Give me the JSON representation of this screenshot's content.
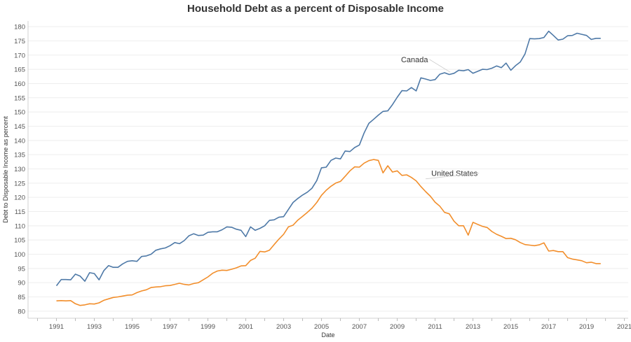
{
  "chart_data": {
    "type": "line",
    "title": "Household Debt as a percent of Disposable Income",
    "xlabel": "Date",
    "ylabel": "Debt to Disposable Income as percent",
    "xlim": [
      1989.5,
      2021.2
    ],
    "ylim": [
      77.5,
      182
    ],
    "x_ticks": [
      1991,
      1993,
      1995,
      1997,
      1999,
      2001,
      2003,
      2005,
      2007,
      2009,
      2011,
      2013,
      2015,
      2017,
      2019,
      2021
    ],
    "y_ticks": [
      80,
      85,
      90,
      95,
      100,
      105,
      110,
      115,
      120,
      125,
      130,
      135,
      140,
      145,
      150,
      155,
      160,
      165,
      170,
      175,
      180
    ],
    "grid": "horizontal",
    "colors": {
      "Canada": "#4e79a7",
      "United States": "#f28e2b"
    },
    "annotations": [
      {
        "text": "Canada",
        "series": "Canada",
        "x": 2009.2,
        "y": 167.5,
        "pointer_to": [
          2011.8,
          164
        ]
      },
      {
        "text": "United States",
        "series": "United States",
        "x": 2010.8,
        "y": 127.5,
        "pointer_to": [
          2010.5,
          126.5
        ]
      }
    ],
    "series": [
      {
        "name": "Canada",
        "points": [
          [
            1991.0,
            88.9
          ],
          [
            1991.25,
            91.1
          ],
          [
            1991.5,
            91.1
          ],
          [
            1991.75,
            91.0
          ],
          [
            1992.0,
            93.0
          ],
          [
            1992.25,
            92.3
          ],
          [
            1992.5,
            90.5
          ],
          [
            1992.75,
            93.5
          ],
          [
            1993.0,
            93.2
          ],
          [
            1993.25,
            91.0
          ],
          [
            1993.5,
            94.2
          ],
          [
            1993.75,
            96.0
          ],
          [
            1994.0,
            95.4
          ],
          [
            1994.25,
            95.4
          ],
          [
            1994.5,
            96.6
          ],
          [
            1994.75,
            97.5
          ],
          [
            1995.0,
            97.7
          ],
          [
            1995.25,
            97.5
          ],
          [
            1995.5,
            99.2
          ],
          [
            1995.75,
            99.4
          ],
          [
            1996.0,
            100.0
          ],
          [
            1996.25,
            101.4
          ],
          [
            1996.5,
            101.9
          ],
          [
            1996.75,
            102.2
          ],
          [
            1997.0,
            103.0
          ],
          [
            1997.25,
            104.1
          ],
          [
            1997.5,
            103.7
          ],
          [
            1997.75,
            104.8
          ],
          [
            1998.0,
            106.5
          ],
          [
            1998.25,
            107.2
          ],
          [
            1998.5,
            106.6
          ],
          [
            1998.75,
            106.7
          ],
          [
            1999.0,
            107.7
          ],
          [
            1999.25,
            107.9
          ],
          [
            1999.5,
            107.9
          ],
          [
            1999.75,
            108.6
          ],
          [
            2000.0,
            109.6
          ],
          [
            2000.25,
            109.5
          ],
          [
            2000.5,
            108.8
          ],
          [
            2000.75,
            108.4
          ],
          [
            2001.0,
            106.2
          ],
          [
            2001.25,
            109.6
          ],
          [
            2001.5,
            108.4
          ],
          [
            2001.75,
            109.1
          ],
          [
            2002.0,
            110.0
          ],
          [
            2002.25,
            111.9
          ],
          [
            2002.5,
            112.1
          ],
          [
            2002.75,
            113.0
          ],
          [
            2003.0,
            113.2
          ],
          [
            2003.25,
            115.7
          ],
          [
            2003.5,
            118.2
          ],
          [
            2003.75,
            119.6
          ],
          [
            2004.0,
            120.8
          ],
          [
            2004.25,
            121.8
          ],
          [
            2004.5,
            123.2
          ],
          [
            2004.75,
            125.9
          ],
          [
            2005.0,
            130.4
          ],
          [
            2005.25,
            130.6
          ],
          [
            2005.5,
            133.0
          ],
          [
            2005.75,
            133.8
          ],
          [
            2006.0,
            133.5
          ],
          [
            2006.25,
            136.3
          ],
          [
            2006.5,
            136.1
          ],
          [
            2006.75,
            137.5
          ],
          [
            2007.0,
            138.4
          ],
          [
            2007.25,
            142.6
          ],
          [
            2007.5,
            146.0
          ],
          [
            2007.75,
            147.4
          ],
          [
            2008.0,
            148.9
          ],
          [
            2008.25,
            150.2
          ],
          [
            2008.5,
            150.4
          ],
          [
            2008.75,
            152.6
          ],
          [
            2009.0,
            155.2
          ],
          [
            2009.25,
            157.5
          ],
          [
            2009.5,
            157.4
          ],
          [
            2009.75,
            158.6
          ],
          [
            2010.0,
            157.4
          ],
          [
            2010.25,
            162.0
          ],
          [
            2010.5,
            161.6
          ],
          [
            2010.75,
            161.1
          ],
          [
            2011.0,
            161.4
          ],
          [
            2011.25,
            163.3
          ],
          [
            2011.5,
            163.8
          ],
          [
            2011.75,
            163.2
          ],
          [
            2012.0,
            163.6
          ],
          [
            2012.25,
            164.7
          ],
          [
            2012.5,
            164.5
          ],
          [
            2012.75,
            164.9
          ],
          [
            2013.0,
            163.6
          ],
          [
            2013.25,
            164.3
          ],
          [
            2013.5,
            165.0
          ],
          [
            2013.75,
            164.9
          ],
          [
            2014.0,
            165.4
          ],
          [
            2014.25,
            166.2
          ],
          [
            2014.5,
            165.6
          ],
          [
            2014.75,
            167.2
          ],
          [
            2015.0,
            164.7
          ],
          [
            2015.25,
            166.3
          ],
          [
            2015.5,
            167.6
          ],
          [
            2015.75,
            170.4
          ],
          [
            2016.0,
            175.8
          ],
          [
            2016.25,
            175.7
          ],
          [
            2016.5,
            175.8
          ],
          [
            2016.75,
            176.2
          ],
          [
            2017.0,
            178.4
          ],
          [
            2017.25,
            176.9
          ],
          [
            2017.5,
            175.3
          ],
          [
            2017.75,
            175.6
          ],
          [
            2018.0,
            176.8
          ],
          [
            2018.25,
            176.9
          ],
          [
            2018.5,
            177.7
          ],
          [
            2018.75,
            177.3
          ],
          [
            2019.0,
            176.9
          ],
          [
            2019.25,
            175.5
          ],
          [
            2019.5,
            175.9
          ],
          [
            2019.75,
            175.9
          ]
        ]
      },
      {
        "name": "United States",
        "points": [
          [
            1991.0,
            83.6
          ],
          [
            1991.25,
            83.7
          ],
          [
            1991.5,
            83.6
          ],
          [
            1991.75,
            83.7
          ],
          [
            1992.0,
            82.6
          ],
          [
            1992.25,
            82.0
          ],
          [
            1992.5,
            82.2
          ],
          [
            1992.75,
            82.6
          ],
          [
            1993.0,
            82.5
          ],
          [
            1993.25,
            82.9
          ],
          [
            1993.5,
            83.8
          ],
          [
            1993.75,
            84.3
          ],
          [
            1994.0,
            84.8
          ],
          [
            1994.25,
            85.0
          ],
          [
            1994.5,
            85.3
          ],
          [
            1994.75,
            85.6
          ],
          [
            1995.0,
            85.7
          ],
          [
            1995.25,
            86.5
          ],
          [
            1995.5,
            87.1
          ],
          [
            1995.75,
            87.5
          ],
          [
            1996.0,
            88.3
          ],
          [
            1996.25,
            88.5
          ],
          [
            1996.5,
            88.6
          ],
          [
            1996.75,
            88.9
          ],
          [
            1997.0,
            89.0
          ],
          [
            1997.25,
            89.4
          ],
          [
            1997.5,
            89.8
          ],
          [
            1997.75,
            89.4
          ],
          [
            1998.0,
            89.2
          ],
          [
            1998.25,
            89.7
          ],
          [
            1998.5,
            90.0
          ],
          [
            1998.75,
            91.0
          ],
          [
            1999.0,
            92.0
          ],
          [
            1999.25,
            93.3
          ],
          [
            1999.5,
            94.1
          ],
          [
            1999.75,
            94.4
          ],
          [
            2000.0,
            94.3
          ],
          [
            2000.25,
            94.7
          ],
          [
            2000.5,
            95.2
          ],
          [
            2000.75,
            95.9
          ],
          [
            2001.0,
            96.0
          ],
          [
            2001.25,
            97.8
          ],
          [
            2001.5,
            98.6
          ],
          [
            2001.75,
            101.0
          ],
          [
            2002.0,
            100.8
          ],
          [
            2002.25,
            101.4
          ],
          [
            2002.5,
            103.4
          ],
          [
            2002.75,
            105.3
          ],
          [
            2003.0,
            107.0
          ],
          [
            2003.25,
            109.6
          ],
          [
            2003.5,
            110.2
          ],
          [
            2003.75,
            112.0
          ],
          [
            2004.0,
            113.3
          ],
          [
            2004.25,
            114.7
          ],
          [
            2004.5,
            116.2
          ],
          [
            2004.75,
            118.2
          ],
          [
            2005.0,
            120.7
          ],
          [
            2005.25,
            122.5
          ],
          [
            2005.5,
            123.9
          ],
          [
            2005.75,
            125.0
          ],
          [
            2006.0,
            125.6
          ],
          [
            2006.25,
            127.4
          ],
          [
            2006.5,
            129.3
          ],
          [
            2006.75,
            130.7
          ],
          [
            2007.0,
            130.6
          ],
          [
            2007.25,
            132.0
          ],
          [
            2007.5,
            132.9
          ],
          [
            2007.75,
            133.3
          ],
          [
            2008.0,
            133.0
          ],
          [
            2008.25,
            128.6
          ],
          [
            2008.5,
            131.1
          ],
          [
            2008.75,
            128.9
          ],
          [
            2009.0,
            129.3
          ],
          [
            2009.25,
            127.7
          ],
          [
            2009.5,
            127.9
          ],
          [
            2009.75,
            127.0
          ],
          [
            2010.0,
            125.8
          ],
          [
            2010.25,
            123.8
          ],
          [
            2010.5,
            122.0
          ],
          [
            2010.75,
            120.4
          ],
          [
            2011.0,
            118.3
          ],
          [
            2011.25,
            116.9
          ],
          [
            2011.5,
            114.7
          ],
          [
            2011.75,
            114.2
          ],
          [
            2012.0,
            111.6
          ],
          [
            2012.25,
            110.0
          ],
          [
            2012.5,
            110.0
          ],
          [
            2012.75,
            106.7
          ],
          [
            2013.0,
            111.2
          ],
          [
            2013.25,
            110.5
          ],
          [
            2013.5,
            109.8
          ],
          [
            2013.75,
            109.4
          ],
          [
            2014.0,
            108.0
          ],
          [
            2014.25,
            107.0
          ],
          [
            2014.5,
            106.3
          ],
          [
            2014.75,
            105.5
          ],
          [
            2015.0,
            105.6
          ],
          [
            2015.25,
            105.1
          ],
          [
            2015.5,
            104.1
          ],
          [
            2015.75,
            103.4
          ],
          [
            2016.0,
            103.2
          ],
          [
            2016.25,
            103.0
          ],
          [
            2016.5,
            103.3
          ],
          [
            2016.75,
            104.0
          ],
          [
            2017.0,
            101.1
          ],
          [
            2017.25,
            101.3
          ],
          [
            2017.5,
            100.9
          ],
          [
            2017.75,
            100.9
          ],
          [
            2018.0,
            98.8
          ],
          [
            2018.25,
            98.3
          ],
          [
            2018.5,
            98.0
          ],
          [
            2018.75,
            97.7
          ],
          [
            2019.0,
            97.0
          ],
          [
            2019.25,
            97.2
          ],
          [
            2019.5,
            96.7
          ],
          [
            2019.75,
            96.7
          ]
        ]
      }
    ]
  }
}
